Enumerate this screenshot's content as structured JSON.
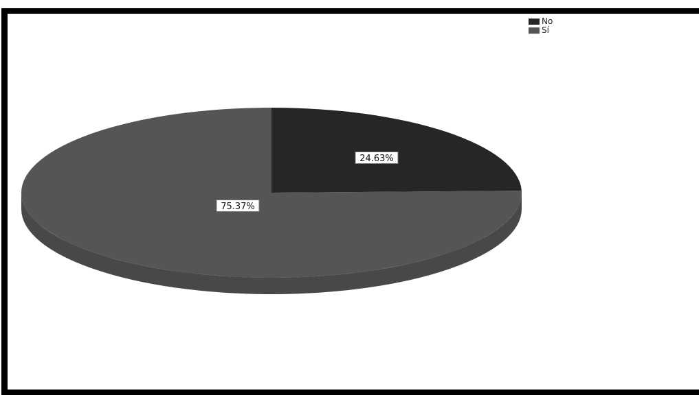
{
  "chart_data": {
    "type": "pie",
    "categories": [
      "No",
      "Sí"
    ],
    "values": [
      24.63,
      75.37
    ],
    "data_labels": [
      "24.63%",
      "75.37%"
    ],
    "colors": [
      "#262626",
      "#555555"
    ],
    "legend": {
      "placement": "top-right",
      "entries": [
        "No",
        "Sí"
      ]
    },
    "title": "",
    "style": "3d-tilted"
  }
}
